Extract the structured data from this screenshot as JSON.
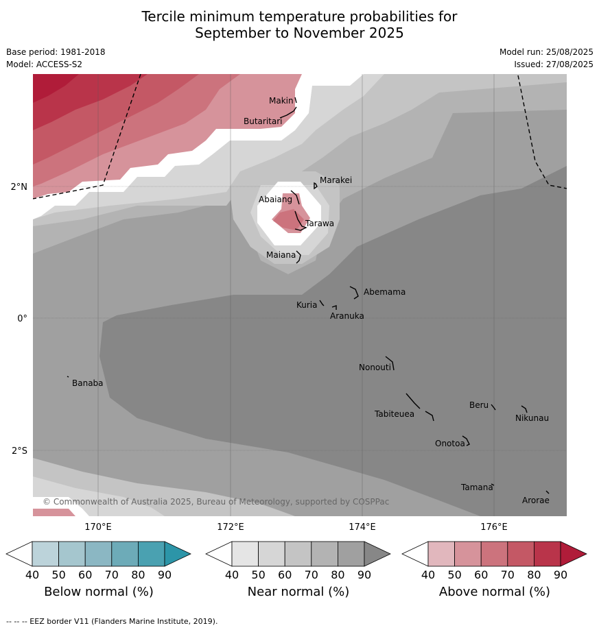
{
  "title_line1": "Tercile minimum temperature probabilities for",
  "title_line2": "September to November 2025",
  "base_period": "Base period: 1981-2018",
  "model": "Model: ACCESS-S2",
  "model_run": "Model run: 25/08/2025",
  "issued": "Issued: 27/08/2025",
  "copyright": "© Commonwealth of Australia 2025, Bureau of Meteorology, supported by COSPPac",
  "footer": "--  --  -- EEZ border V11 (Flanders Marine Institute, 2019).",
  "lon_labels": [
    "170°E",
    "172°E",
    "174°E",
    "176°E"
  ],
  "lat_labels": [
    "2°N",
    "0°",
    "2°S"
  ],
  "places": [
    {
      "name": "Makin"
    },
    {
      "name": "Butaritari"
    },
    {
      "name": "Marakei"
    },
    {
      "name": "Abaiang"
    },
    {
      "name": "Tarawa"
    },
    {
      "name": "Maiana"
    },
    {
      "name": "Abemama"
    },
    {
      "name": "Kuria"
    },
    {
      "name": "Aranuka"
    },
    {
      "name": "Nonouti"
    },
    {
      "name": "Banaba"
    },
    {
      "name": "Beru"
    },
    {
      "name": "Tabiteuea"
    },
    {
      "name": "Nikunau"
    },
    {
      "name": "Onotoa"
    },
    {
      "name": "Tamana"
    },
    {
      "name": "Arorae"
    }
  ],
  "colorbars": [
    {
      "label": "Below normal (%)",
      "ticks": [
        "40",
        "50",
        "60",
        "70",
        "80",
        "90"
      ],
      "colors": [
        "#ffffff",
        "#bcd3da",
        "#a5c6ce",
        "#8bb7c3",
        "#6dabb8",
        "#4aa1b1",
        "#2c95a8"
      ]
    },
    {
      "label": "Near normal (%)",
      "ticks": [
        "40",
        "50",
        "60",
        "70",
        "80",
        "90"
      ],
      "colors": [
        "#ffffff",
        "#e5e5e5",
        "#d6d6d6",
        "#c4c4c4",
        "#b3b3b3",
        "#a0a0a0",
        "#878787"
      ]
    },
    {
      "label": "Above normal (%)",
      "ticks": [
        "40",
        "50",
        "60",
        "70",
        "80",
        "90"
      ],
      "colors": [
        "#ffffff",
        "#e1b7bd",
        "#d6939b",
        "#cc737d",
        "#c45865",
        "#b9344a",
        "#b01c39"
      ]
    }
  ]
}
